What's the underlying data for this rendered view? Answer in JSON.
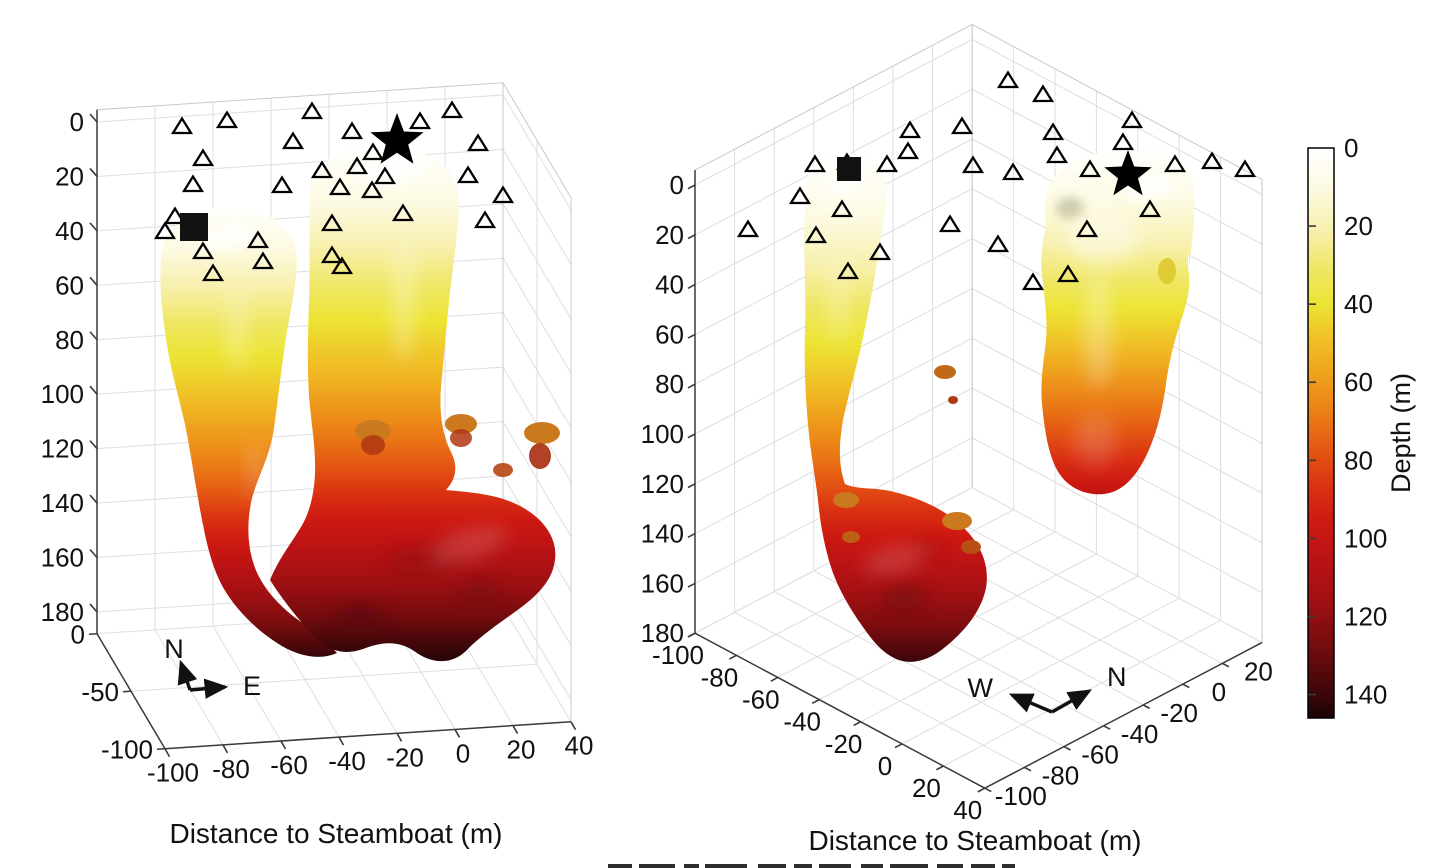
{
  "chart_data": {
    "type": "isosurface-3d",
    "figure_kind": "two-panel 3D isosurface rendering of subsurface conduits with shared depth colormap",
    "panels": [
      {
        "id": "left",
        "xlabel": "Distance to Steamboat (m)",
        "depth_ticks": [
          0,
          20,
          40,
          60,
          80,
          100,
          120,
          140,
          160,
          180
        ],
        "x_ticks": [
          -100,
          -80,
          -60,
          -40,
          -20,
          0,
          20,
          40
        ],
        "y_ticks": [
          0,
          -50,
          -100
        ],
        "compass": {
          "up": "N",
          "right": "E"
        },
        "star_marker": [
          397,
          141
        ],
        "square_marker": [
          194,
          227
        ],
        "plume_top_depths_m": [
          32,
          8
        ],
        "max_depth_m": 185,
        "triangle_markers": [
          [
            182,
            127
          ],
          [
            227,
            121
          ],
          [
            312,
            112
          ],
          [
            352,
            132
          ],
          [
            293,
            142
          ],
          [
            420,
            122
          ],
          [
            452,
            111
          ],
          [
            478,
            144
          ],
          [
            203,
            159
          ],
          [
            373,
            153
          ],
          [
            322,
            171
          ],
          [
            357,
            167
          ],
          [
            385,
            177
          ],
          [
            372,
            191
          ],
          [
            340,
            188
          ],
          [
            403,
            214
          ],
          [
            468,
            176
          ],
          [
            503,
            196
          ],
          [
            485,
            221
          ],
          [
            193,
            185
          ],
          [
            282,
            186
          ],
          [
            332,
            224
          ],
          [
            258,
            241
          ],
          [
            165,
            232
          ],
          [
            175,
            217
          ],
          [
            203,
            252
          ],
          [
            263,
            262
          ],
          [
            332,
            256
          ],
          [
            342,
            267
          ],
          [
            213,
            274
          ]
        ]
      },
      {
        "id": "right",
        "xlabel": "Distance to Steamboat (m)",
        "depth_ticks": [
          0,
          20,
          40,
          60,
          80,
          100,
          120,
          140,
          160,
          180
        ],
        "axis1_ticks": [
          -100,
          -80,
          -60,
          -40,
          -20,
          0,
          20,
          40
        ],
        "axis2_ticks": [
          -100,
          -80,
          -60,
          -40,
          -20,
          0,
          20
        ],
        "compass": {
          "left": "W",
          "right": "N"
        },
        "star_marker": [
          1128,
          175
        ],
        "square_marker": [
          849,
          169
        ],
        "plume_top_depths_m": [
          35,
          6
        ],
        "max_depth_m": 185,
        "triangle_markers": [
          [
            748,
            230
          ],
          [
            800,
            197
          ],
          [
            815,
            165
          ],
          [
            816,
            236
          ],
          [
            842,
            210
          ],
          [
            847,
            163
          ],
          [
            848,
            272
          ],
          [
            880,
            253
          ],
          [
            887,
            165
          ],
          [
            908,
            152
          ],
          [
            910,
            131
          ],
          [
            950,
            225
          ],
          [
            962,
            127
          ],
          [
            973,
            166
          ],
          [
            998,
            245
          ],
          [
            1008,
            81
          ],
          [
            1013,
            173
          ],
          [
            1033,
            283
          ],
          [
            1043,
            95
          ],
          [
            1053,
            133
          ],
          [
            1057,
            156
          ],
          [
            1068,
            275
          ],
          [
            1087,
            230
          ],
          [
            1090,
            170
          ],
          [
            1123,
            143
          ],
          [
            1132,
            121
          ],
          [
            1150,
            210
          ],
          [
            1175,
            165
          ],
          [
            1212,
            162
          ],
          [
            1245,
            170
          ]
        ]
      }
    ],
    "colorbar": {
      "label": "Depth (m)",
      "ticks": [
        0,
        20,
        40,
        60,
        80,
        100,
        120,
        140
      ],
      "range_m": [
        0,
        146
      ],
      "colormap_stops": [
        [
          0,
          "#ffffff"
        ],
        [
          10,
          "#fdfae3"
        ],
        [
          21,
          "#f7f0ae"
        ],
        [
          31,
          "#efe763"
        ],
        [
          40,
          "#ece434"
        ],
        [
          49,
          "#f0c026"
        ],
        [
          60,
          "#ee9b1b"
        ],
        [
          69,
          "#ea7a16"
        ],
        [
          78,
          "#e35412"
        ],
        [
          87,
          "#da3112"
        ],
        [
          96,
          "#cd1912"
        ],
        [
          106,
          "#b91214"
        ],
        [
          117,
          "#9d1013"
        ],
        [
          127,
          "#760c0e"
        ],
        [
          138,
          "#45070a"
        ],
        [
          150,
          "#1c0405"
        ]
      ]
    }
  }
}
